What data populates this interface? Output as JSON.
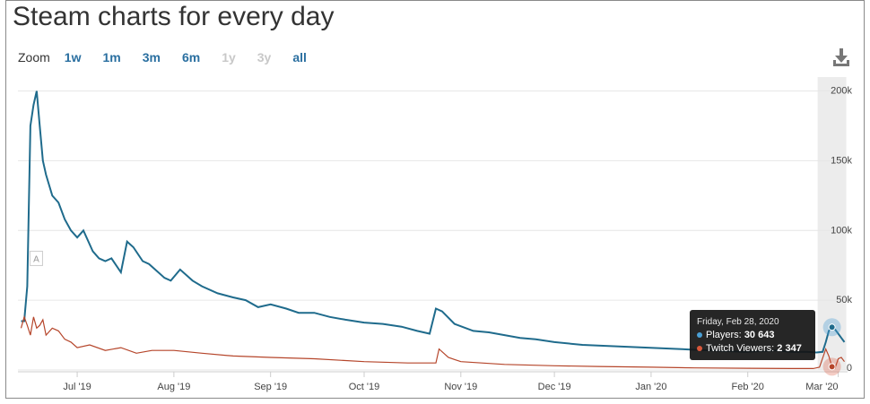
{
  "title": "Steam charts for every day",
  "zoom": {
    "label": "Zoom",
    "options": [
      {
        "label": "1w",
        "enabled": true
      },
      {
        "label": "1m",
        "enabled": true
      },
      {
        "label": "3m",
        "enabled": true
      },
      {
        "label": "6m",
        "enabled": true
      },
      {
        "label": "1y",
        "enabled": false
      },
      {
        "label": "3y",
        "enabled": false
      },
      {
        "label": "all",
        "enabled": true
      }
    ]
  },
  "download_icon": "download-icon",
  "tooltip": {
    "date": "Friday, Feb 28, 2020",
    "players_label": "Players:",
    "players_value": "30 643",
    "twitch_label": "Twitch Viewers:",
    "twitch_value": "2 347"
  },
  "colors": {
    "players": "#1f6b8c",
    "twitch": "#b5452a",
    "grid": "#e6e6e6",
    "highlight_band": "#ececec",
    "enabled_button": "#2a6fa0",
    "disabled_button": "#c8c8c8"
  },
  "flag_annotation": "A",
  "chart_data": {
    "type": "line",
    "title": "Steam charts for every day",
    "x_type": "date",
    "x_ticks": [
      "Jul '19",
      "Aug '19",
      "Sep '19",
      "Oct '19",
      "Nov '19",
      "Dec '19",
      "Jan '20",
      "Feb '20",
      "Mar '20"
    ],
    "y_ticks": [
      "0",
      "50k",
      "100k",
      "150k",
      "200k"
    ],
    "ylim": [
      0,
      210000
    ],
    "grid": true,
    "legend": "none",
    "series": [
      {
        "name": "Players",
        "x": [
          "2019-06-13",
          "2019-06-14",
          "2019-06-15",
          "2019-06-16",
          "2019-06-17",
          "2019-06-18",
          "2019-06-19",
          "2019-06-20",
          "2019-06-21",
          "2019-06-23",
          "2019-06-25",
          "2019-06-27",
          "2019-06-29",
          "2019-07-01",
          "2019-07-03",
          "2019-07-06",
          "2019-07-08",
          "2019-07-10",
          "2019-07-12",
          "2019-07-15",
          "2019-07-17",
          "2019-07-19",
          "2019-07-22",
          "2019-07-24",
          "2019-07-26",
          "2019-07-29",
          "2019-07-31",
          "2019-08-03",
          "2019-08-05",
          "2019-08-07",
          "2019-08-10",
          "2019-08-15",
          "2019-08-20",
          "2019-08-24",
          "2019-08-28",
          "2019-09-01",
          "2019-09-06",
          "2019-09-10",
          "2019-09-15",
          "2019-09-20",
          "2019-09-25",
          "2019-10-01",
          "2019-10-07",
          "2019-10-13",
          "2019-10-18",
          "2019-10-22",
          "2019-10-24",
          "2019-10-26",
          "2019-10-30",
          "2019-11-05",
          "2019-11-10",
          "2019-11-15",
          "2019-11-20",
          "2019-11-25",
          "2019-12-01",
          "2019-12-10",
          "2019-12-20",
          "2019-12-31",
          "2020-01-10",
          "2020-01-20",
          "2020-01-31",
          "2020-02-05",
          "2020-02-10",
          "2020-02-15",
          "2020-02-20",
          "2020-02-23",
          "2020-02-25",
          "2020-02-26",
          "2020-02-27",
          "2020-02-28",
          "2020-02-29",
          "2020-03-01",
          "2020-03-02",
          "2020-03-03"
        ],
        "values": [
          35000,
          35000,
          60000,
          175000,
          190000,
          200000,
          175000,
          150000,
          140000,
          125000,
          120000,
          108000,
          100000,
          95000,
          100000,
          85000,
          80000,
          78000,
          80000,
          70000,
          92000,
          88000,
          78000,
          76000,
          72000,
          66000,
          64000,
          72000,
          68000,
          64000,
          60000,
          55000,
          52000,
          50000,
          45000,
          47000,
          44000,
          41000,
          41000,
          38000,
          36000,
          34000,
          33000,
          31000,
          28000,
          26000,
          44000,
          42000,
          33000,
          28000,
          27000,
          25000,
          23000,
          22000,
          20000,
          18000,
          17000,
          16000,
          15000,
          14000,
          13000,
          13500,
          14000,
          13000,
          13000,
          12500,
          13000,
          20000,
          28000,
          30643,
          29000,
          26000,
          23000,
          20000
        ]
      },
      {
        "name": "Twitch Viewers",
        "x": [
          "2019-06-13",
          "2019-06-14",
          "2019-06-15",
          "2019-06-16",
          "2019-06-17",
          "2019-06-18",
          "2019-06-19",
          "2019-06-20",
          "2019-06-21",
          "2019-06-23",
          "2019-06-25",
          "2019-06-27",
          "2019-06-29",
          "2019-07-01",
          "2019-07-05",
          "2019-07-10",
          "2019-07-15",
          "2019-07-20",
          "2019-07-25",
          "2019-08-01",
          "2019-08-10",
          "2019-08-20",
          "2019-09-01",
          "2019-09-15",
          "2019-10-01",
          "2019-10-15",
          "2019-10-24",
          "2019-10-25",
          "2019-10-28",
          "2019-11-01",
          "2019-11-15",
          "2019-12-01",
          "2019-12-15",
          "2020-01-01",
          "2020-01-15",
          "2020-02-01",
          "2020-02-15",
          "2020-02-22",
          "2020-02-24",
          "2020-02-26",
          "2020-02-27",
          "2020-02-28",
          "2020-02-29",
          "2020-03-01",
          "2020-03-02",
          "2020-03-03"
        ],
        "values": [
          30000,
          38000,
          32000,
          25000,
          38000,
          30000,
          32000,
          36000,
          25000,
          30000,
          28000,
          22000,
          20000,
          16000,
          18000,
          14000,
          16000,
          12000,
          14000,
          14000,
          12000,
          10000,
          9000,
          8000,
          6000,
          5000,
          5000,
          15000,
          9000,
          6000,
          4000,
          3000,
          2500,
          2000,
          1500,
          1200,
          1000,
          1000,
          2000,
          15000,
          10000,
          2347,
          1500,
          8000,
          9000,
          6000
        ]
      }
    ],
    "highlight_x": "2020-02-28",
    "annotations": [
      "A"
    ]
  }
}
